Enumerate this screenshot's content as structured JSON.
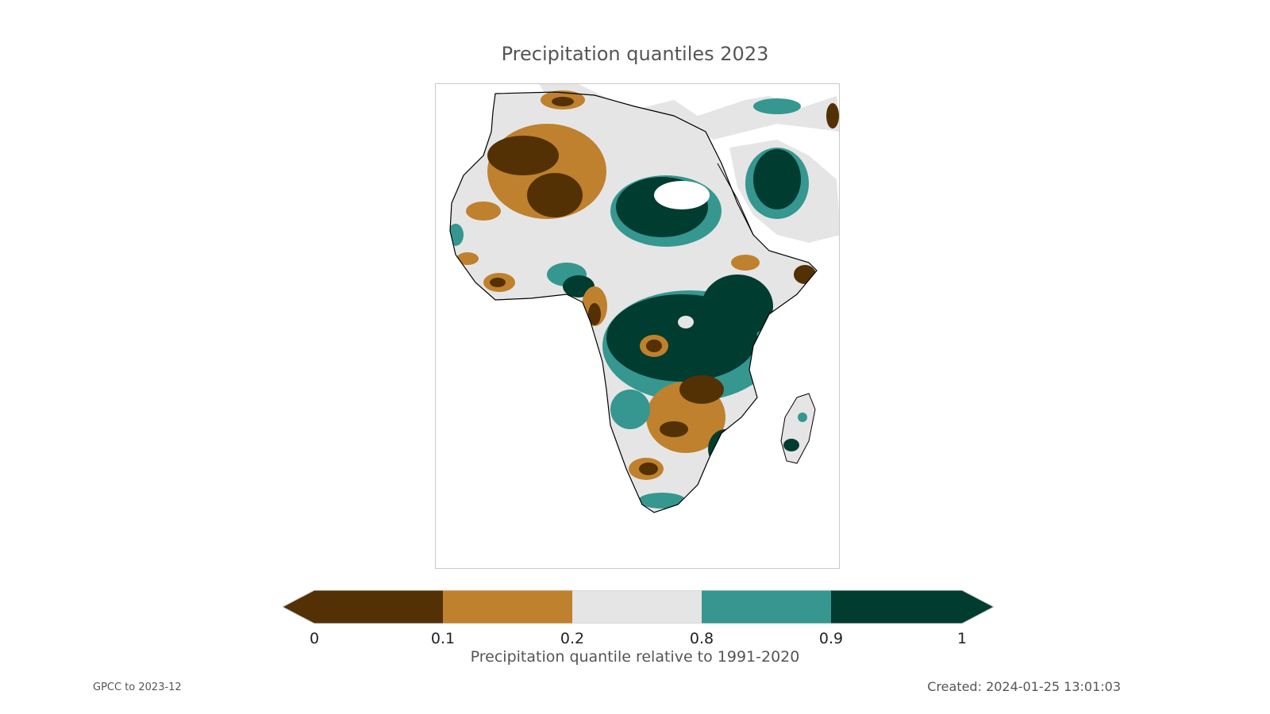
{
  "title": "Precipitation quantiles 2023",
  "colorbar": {
    "label": "Precipitation quantile relative to 1991-2020",
    "ticks": [
      "0",
      "0.1",
      "0.2",
      "0.8",
      "0.9",
      "1"
    ],
    "colors": [
      "#543005",
      "#bf812d",
      "#e5e5e5",
      "#35978f",
      "#003c30"
    ],
    "extend": "both"
  },
  "footer": {
    "source": "GPCC to 2023-12",
    "created": "Created: 2024-01-25 13:01:03"
  },
  "map": {
    "region": "Africa",
    "category_colors": {
      "very_dry": "#543005",
      "dry": "#bf812d",
      "normal": "#e5e5e5",
      "wet": "#35978f",
      "very_wet": "#003c30"
    },
    "coastline_color": "#000000"
  }
}
